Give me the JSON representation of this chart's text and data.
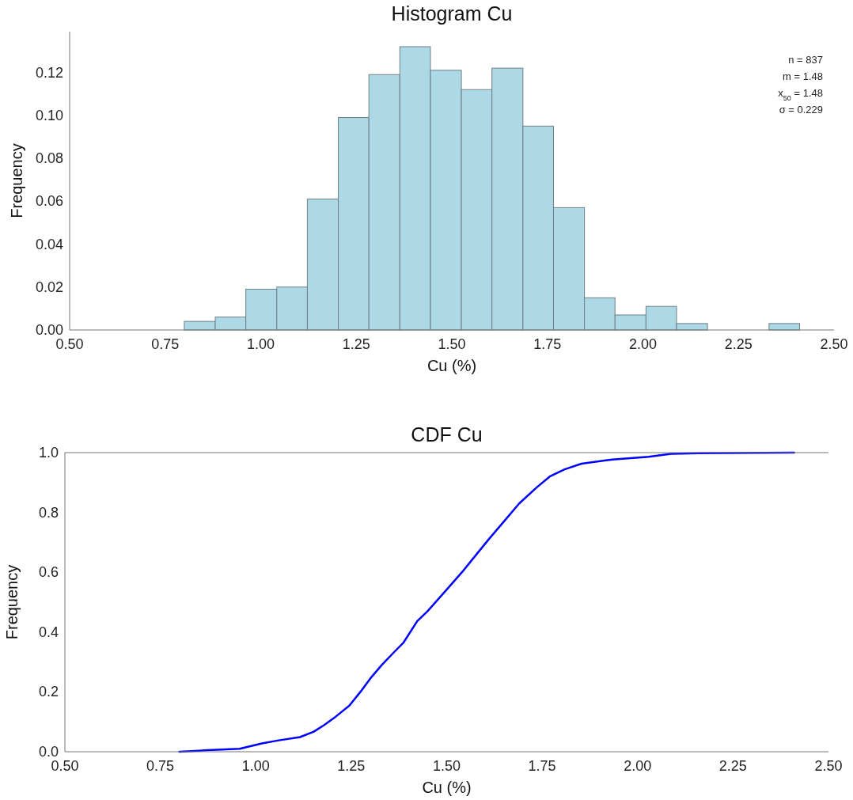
{
  "chart_data": [
    {
      "type": "histogram",
      "title": "Histogram Cu",
      "xlabel": "Cu (%)",
      "ylabel": "Frequency",
      "bins": [
        0.8,
        0.881,
        0.961,
        1.042,
        1.122,
        1.203,
        1.283,
        1.364,
        1.444,
        1.525,
        1.605,
        1.686,
        1.766,
        1.847,
        1.927,
        2.008,
        2.088,
        2.169,
        2.249,
        2.33,
        2.41
      ],
      "values": [
        0.004,
        0.006,
        0.019,
        0.02,
        0.061,
        0.099,
        0.119,
        0.132,
        0.121,
        0.112,
        0.122,
        0.095,
        0.057,
        0.015,
        0.007,
        0.011,
        0.003,
        0,
        0,
        0.003
      ],
      "color": "#add8e6",
      "xlim": [
        0.5,
        2.5
      ],
      "xticks": [
        {
          "value": 0.5,
          "label": "0.50"
        },
        0.75,
        {
          "value": 1,
          "label": "1.00"
        },
        1.25,
        {
          "value": 1.5,
          "label": "1.50"
        },
        1.75,
        {
          "value": 2,
          "label": "2.00"
        },
        2.25,
        {
          "value": 2.5,
          "label": "2.50"
        }
      ],
      "ylim": [
        0,
        0.139
      ],
      "yticks": [
        {
          "value": 0,
          "label": "0.00"
        },
        0.02,
        0.04,
        0.06,
        0.08,
        {
          "value": 0.1,
          "label": "0.10"
        },
        0.12
      ],
      "annotations": [
        "n = 837",
        "m = 1.48",
        "x$_{50}$ = 1.48",
        "σ = 0.229"
      ]
    },
    {
      "type": "line",
      "title": "CDF Cu",
      "xlabel": "Cu (%)",
      "ylabel": "Frequency",
      "series": [
        {
          "color": "#0000ff",
          "x": [
            0.8,
            0.873,
            0.958,
            1.016,
            1.06,
            1.116,
            1.152,
            1.18,
            1.21,
            1.245,
            1.274,
            1.3,
            1.33,
            1.36,
            1.387,
            1.423,
            1.45,
            1.5,
            1.54,
            1.575,
            1.61,
            1.648,
            1.69,
            1.736,
            1.77,
            1.809,
            1.853,
            1.934,
            2.029,
            2.088,
            2.16,
            2.41
          ],
          "values": [
            0.0,
            0.005,
            0.01,
            0.028,
            0.038,
            0.049,
            0.067,
            0.09,
            0.118,
            0.154,
            0.2,
            0.245,
            0.29,
            0.33,
            0.365,
            0.437,
            0.47,
            0.542,
            0.6,
            0.655,
            0.71,
            0.767,
            0.83,
            0.884,
            0.92,
            0.944,
            0.963,
            0.977,
            0.986,
            0.996,
            0.998,
            1.0
          ]
        }
      ],
      "xlim": [
        0.5,
        2.5
      ],
      "xticks": [
        {
          "value": 0.5,
          "label": "0.50"
        },
        0.75,
        {
          "value": 1,
          "label": "1.00"
        },
        1.25,
        {
          "value": 1.5,
          "label": "1.50"
        },
        1.75,
        {
          "value": 2,
          "label": "2.00"
        },
        2.25,
        {
          "value": 2.5,
          "label": "2.50"
        }
      ],
      "ylim": [
        0,
        1
      ],
      "yticks": [
        {
          "value": 0,
          "label": "0.0"
        },
        0.2,
        0.4,
        0.6,
        0.8,
        {
          "value": 1,
          "label": "1.0"
        }
      ]
    }
  ]
}
